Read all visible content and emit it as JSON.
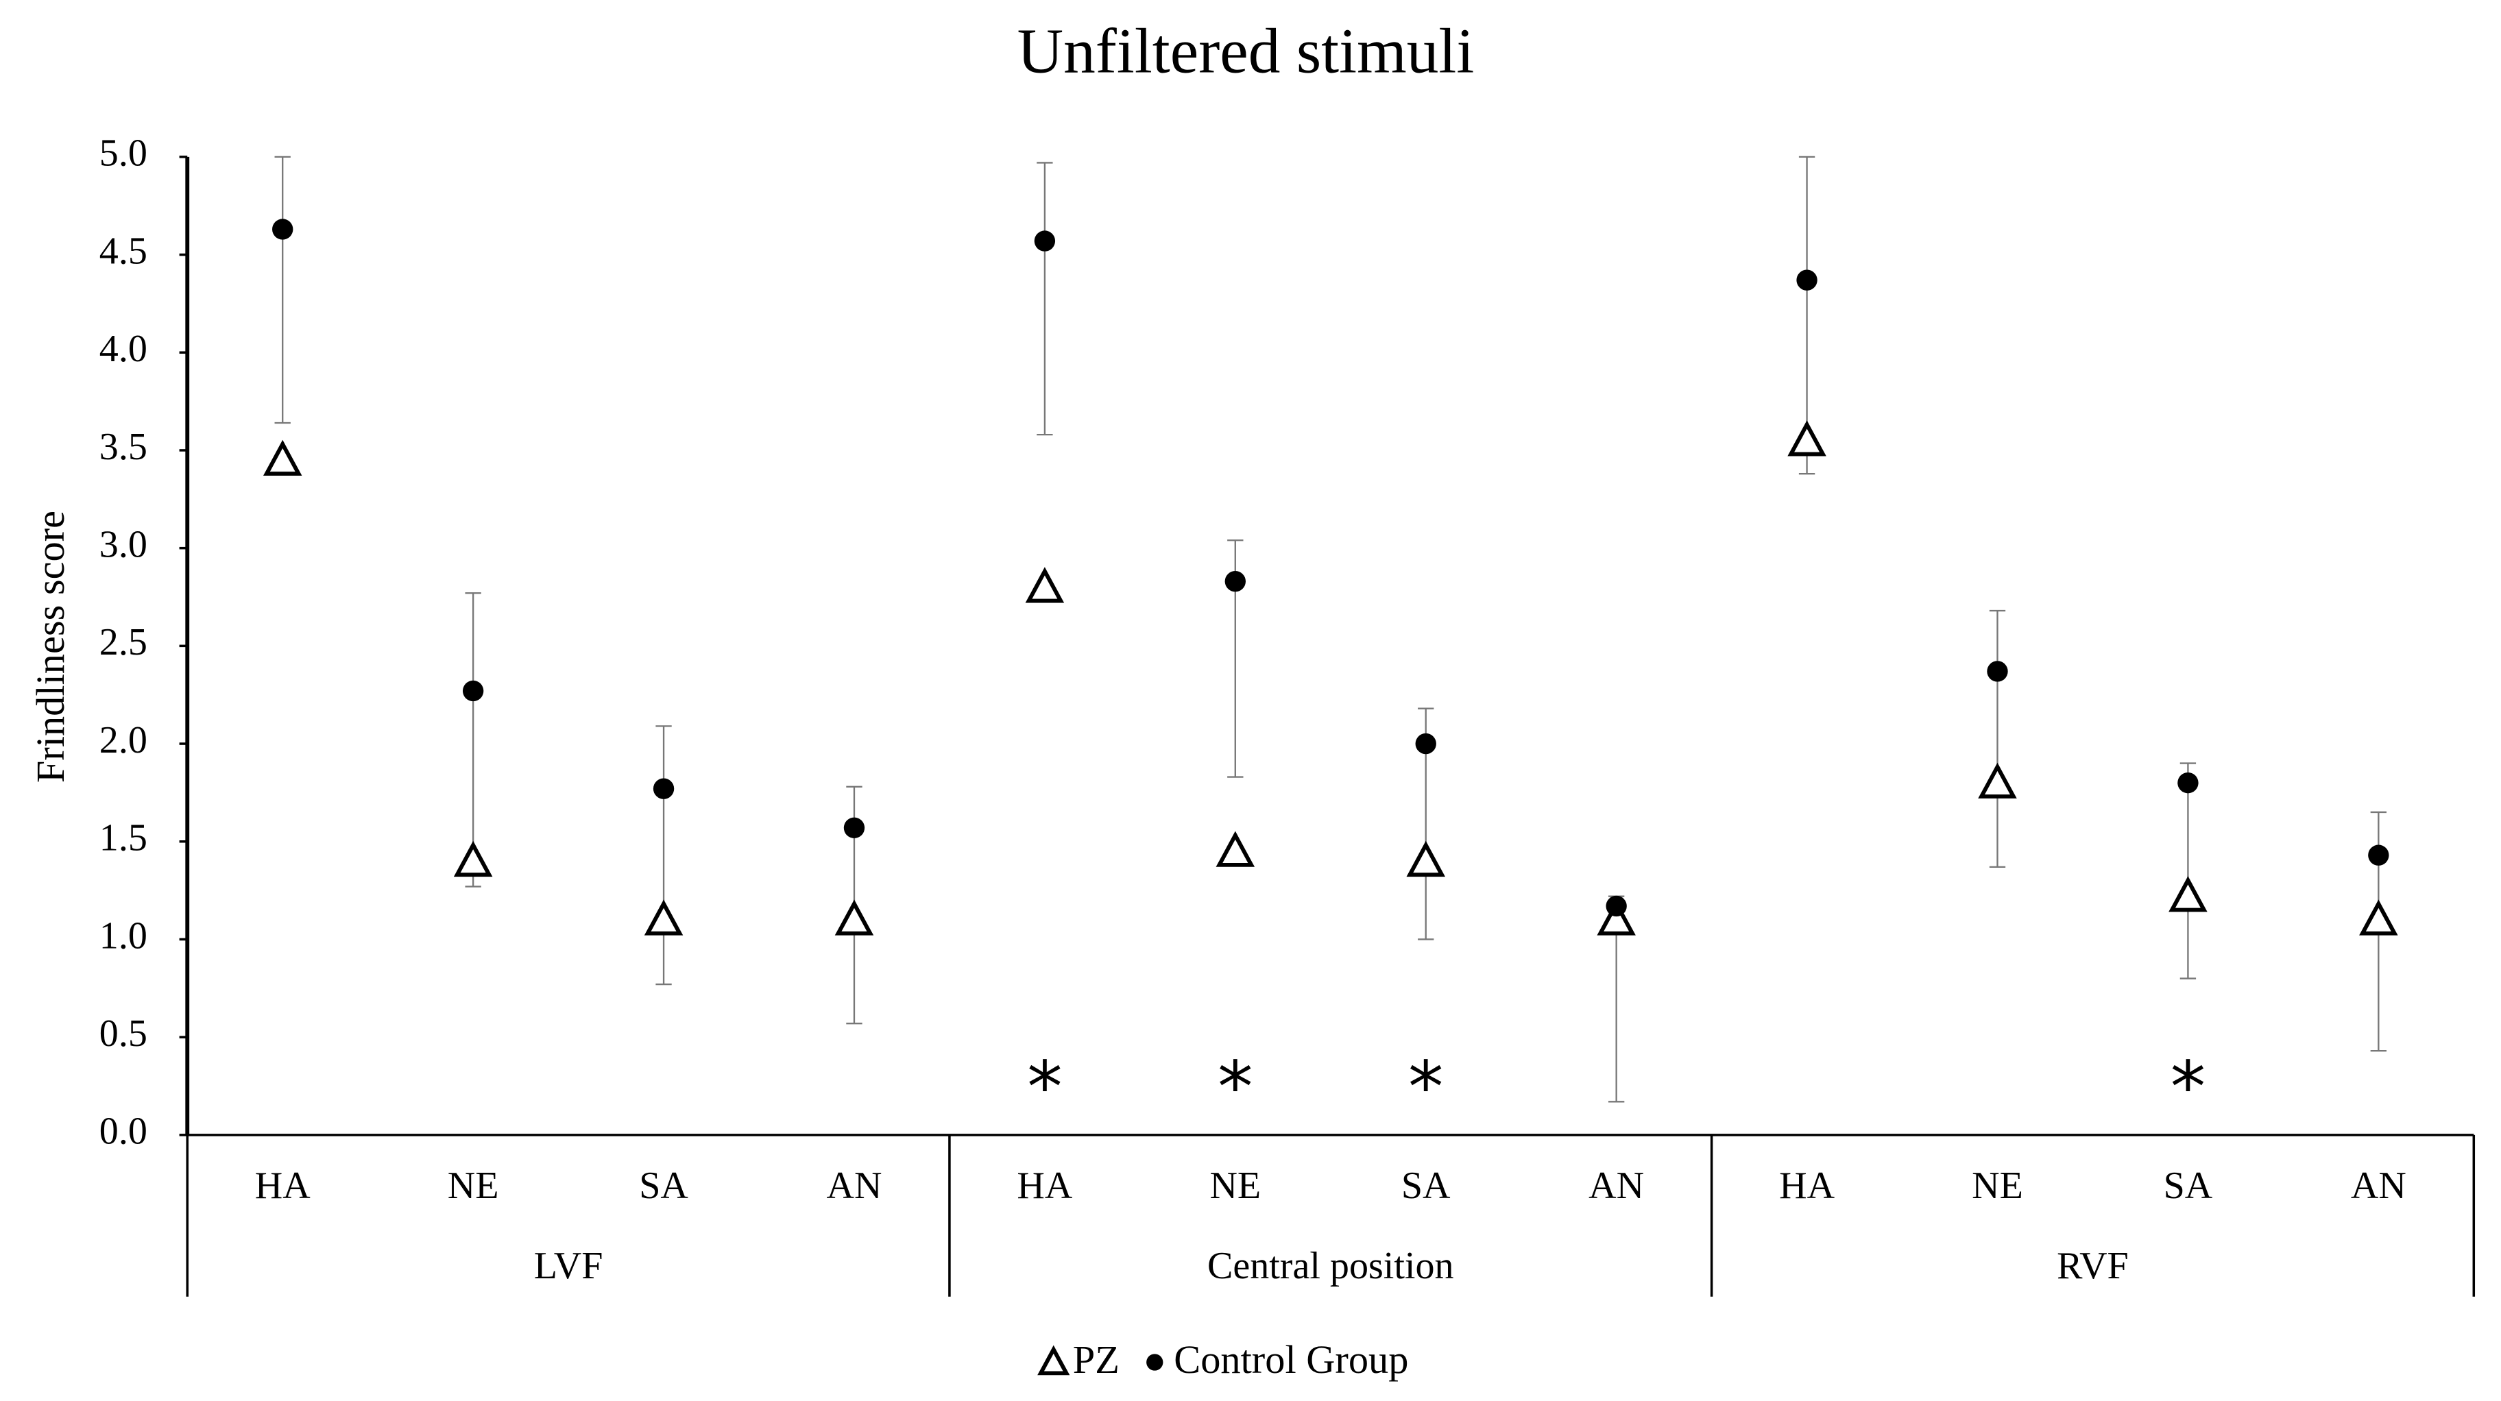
{
  "chart_data": {
    "type": "scatter",
    "title": "Unfiltered stimuli",
    "y_label": "Frindliness score",
    "groups": [
      {
        "label": "LVF",
        "categories": [
          "HA",
          "NE",
          "SA",
          "AN"
        ]
      },
      {
        "label": "Central position",
        "categories": [
          "HA",
          "NE",
          "SA",
          "AN"
        ]
      },
      {
        "label": "RVF",
        "categories": [
          "HA",
          "NE",
          "SA",
          "AN"
        ]
      }
    ],
    "series": [
      {
        "name": "PZ",
        "marker": "triangle",
        "color": "#000000",
        "values": [
          3.45,
          1.4,
          1.1,
          1.1,
          2.8,
          1.45,
          1.4,
          1.1,
          3.55,
          1.8,
          1.22,
          1.1
        ]
      },
      {
        "name": "Control Group",
        "marker": "circle",
        "color": "#000000",
        "values": [
          4.63,
          2.27,
          1.77,
          1.57,
          4.57,
          2.83,
          2.0,
          1.17,
          4.37,
          2.37,
          1.8,
          1.43
        ],
        "error_minus": [
          0.99,
          1.0,
          1.0,
          1.0,
          0.99,
          1.0,
          1.0,
          1.0,
          0.99,
          1.0,
          1.0,
          1.0
        ],
        "error_plus": [
          0.37,
          0.5,
          0.32,
          0.21,
          0.4,
          0.21,
          0.18,
          0.05,
          0.63,
          0.31,
          0.1,
          0.22
        ]
      }
    ],
    "significance": [
      null,
      null,
      null,
      null,
      "*",
      "*",
      "*",
      null,
      null,
      null,
      "*",
      null
    ],
    "ylim": [
      0,
      5
    ],
    "yticks": [
      {
        "value": 0,
        "label": "0.0"
      },
      {
        "value": 0.5,
        "label": "0.5"
      },
      {
        "value": 1,
        "label": "1.0"
      },
      {
        "value": 1.5,
        "label": "1.5"
      },
      {
        "value": 2,
        "label": "2.0"
      },
      {
        "value": 2.5,
        "label": "2.5"
      },
      {
        "value": 3,
        "label": "3.0"
      },
      {
        "value": 3.5,
        "label": "3.5"
      },
      {
        "value": 4,
        "label": "4.0"
      },
      {
        "value": 4.5,
        "label": "4.5"
      },
      {
        "value": 5,
        "label": "5.0"
      }
    ],
    "legend": "bottom"
  }
}
